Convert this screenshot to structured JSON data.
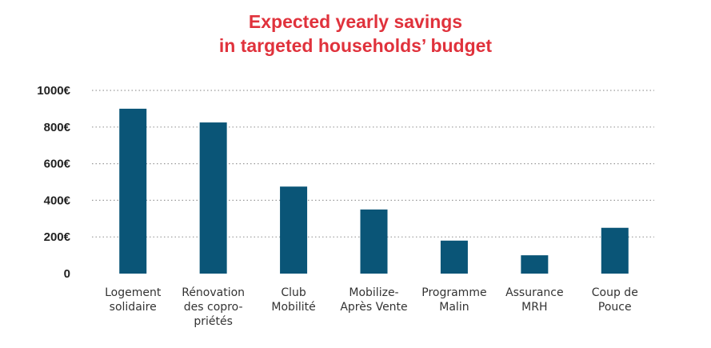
{
  "chart_data": {
    "type": "bar",
    "title_line1": "Expected yearly savings",
    "title_line2": "in targeted households’ budget",
    "categories": [
      [
        "Logement",
        "solidaire"
      ],
      [
        "Rénovation",
        "des copro-",
        "priétés"
      ],
      [
        "Club",
        "Mobilité"
      ],
      [
        "Mobilize-",
        "Après Vente"
      ],
      [
        "Programme",
        "Malin"
      ],
      [
        "Assurance",
        "MRH"
      ],
      [
        "Coup de",
        "Pouce"
      ]
    ],
    "values": [
      900,
      825,
      475,
      350,
      180,
      100,
      250
    ],
    "ylim": [
      0,
      1000
    ],
    "yticks": [
      0,
      200,
      400,
      600,
      800,
      1000
    ],
    "ytick_labels": [
      "0",
      "200€",
      "400€",
      "600€",
      "800€",
      "1000€"
    ],
    "grid": "dotted horizontal",
    "bar_color": "#0a5577",
    "title_color": "#e0323c"
  }
}
